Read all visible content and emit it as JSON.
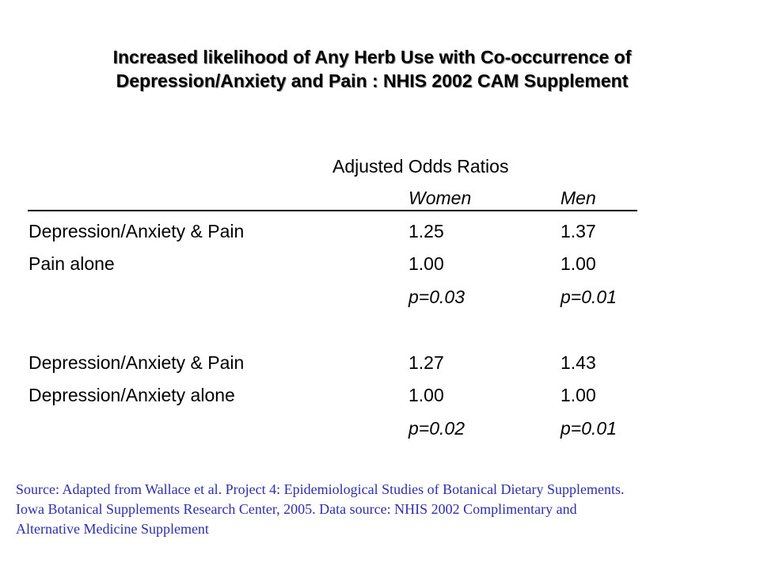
{
  "title": {
    "line1": "Increased likelihood of Any Herb Use with Co-occurrence of",
    "line2": "Depression/Anxiety and Pain : NHIS 2002 CAM Supplement"
  },
  "table": {
    "header": "Adjusted Odds Ratios",
    "columns": [
      "Women",
      "Men"
    ],
    "groups": [
      {
        "rows": [
          {
            "label": "Depression/Anxiety & Pain",
            "women": "1.25",
            "men": "1.37"
          },
          {
            "label": "Pain alone",
            "women": "1.00",
            "men": "1.00"
          }
        ],
        "p_values": {
          "women": "p=0.03",
          "men": "p=0.01"
        }
      },
      {
        "rows": [
          {
            "label": "Depression/Anxiety & Pain",
            "women": "1.27",
            "men": "1.43"
          },
          {
            "label": "Depression/Anxiety alone",
            "women": "1.00",
            "men": "1.00"
          }
        ],
        "p_values": {
          "women": "p=0.02",
          "men": "p=0.01"
        }
      }
    ]
  },
  "source": {
    "lines": [
      "Source: Adapted from Wallace et al. Project 4: Epidemiological Studies of Botanical Dietary Supplements.",
      "Iowa Botanical Supplements Research Center, 2005. Data source: NHIS 2002 Complimentary and",
      "Alternative Medicine Supplement"
    ]
  },
  "colors": {
    "text": "#000000",
    "source_text": "#2e2eae",
    "background": "#ffffff"
  }
}
